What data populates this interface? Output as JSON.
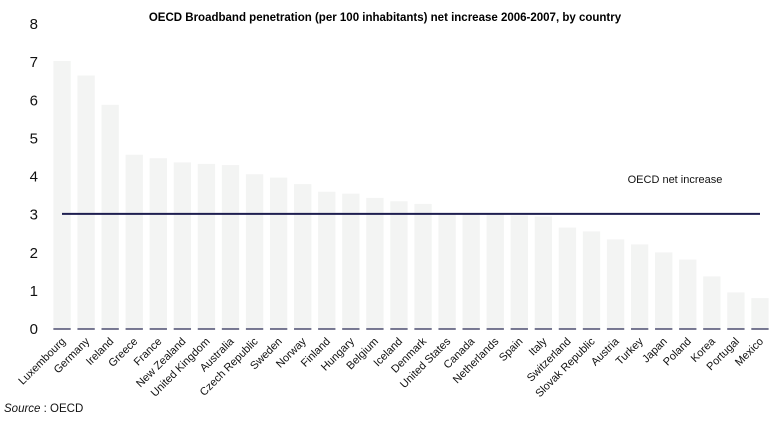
{
  "chart_data": {
    "type": "bar",
    "title": "OECD Broadband penetration (per 100 inhabitants) net increase 2006-2007, by country",
    "xlabel": "",
    "ylabel": "",
    "ylim": [
      0,
      8
    ],
    "yticks": [
      0,
      1,
      2,
      3,
      4,
      5,
      6,
      7,
      8
    ],
    "grid": false,
    "categories": [
      "Luxembourg",
      "Germany",
      "Ireland",
      "Greece",
      "France",
      "New Zealand",
      "United Kingdom",
      "Australia",
      "Czech Republic",
      "Sweden",
      "Norway",
      "Finland",
      "Hungary",
      "Belgium",
      "Iceland",
      "Denmark",
      "United States",
      "Canada",
      "Netherlands",
      "Spain",
      "Italy",
      "Switzerland",
      "Slovak Republic",
      "Austria",
      "Turkey",
      "Japan",
      "Poland",
      "Korea",
      "Portugal",
      "Mexico"
    ],
    "values": [
      7.03,
      6.65,
      5.88,
      4.57,
      4.48,
      4.37,
      4.33,
      4.3,
      4.06,
      3.97,
      3.8,
      3.6,
      3.55,
      3.44,
      3.35,
      3.28,
      3.03,
      3.01,
      3.0,
      2.98,
      2.95,
      2.66,
      2.56,
      2.35,
      2.22,
      2.01,
      1.82,
      1.38,
      0.96,
      0.81
    ],
    "bar_color": "#f3f4f3",
    "reference_line": {
      "label": "OECD net increase",
      "value": 3.02,
      "color": "#1e1e50"
    }
  },
  "source": {
    "label": "Source",
    "text": " : OECD"
  }
}
